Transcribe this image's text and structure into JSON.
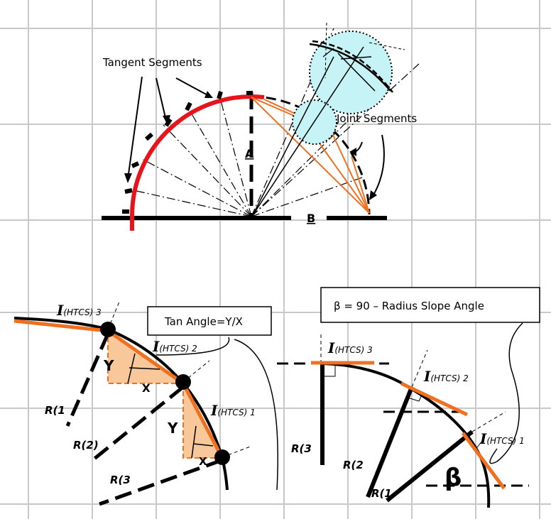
{
  "labels": {
    "tangent_segments": "Tangent Segments",
    "joint_segments": "Joint Segments",
    "a": "A",
    "b": "B",
    "tan_angle_box": "Tan Angle=Y/X",
    "beta_box": "β = 90 – Radius Slope Angle",
    "beta_symbol": "β",
    "i_symbol": "I",
    "i_sub_3": "(HTCS) 3",
    "i_sub_2": "(HTCS) 2",
    "i_sub_1": "(HTCS) 1",
    "y": "Y",
    "x": "X",
    "r1": "R(1",
    "r2": "R(2)",
    "r3": "R(3",
    "r2_right": "R(2",
    "r3_right": "R(3"
  },
  "colors": {
    "arc_red": "#e8141c",
    "tangent_orange": "#f07020",
    "triangle_fill": "#f9c89a",
    "circle_fill": "#c6f3f6",
    "grid": "#c8c8c8"
  }
}
